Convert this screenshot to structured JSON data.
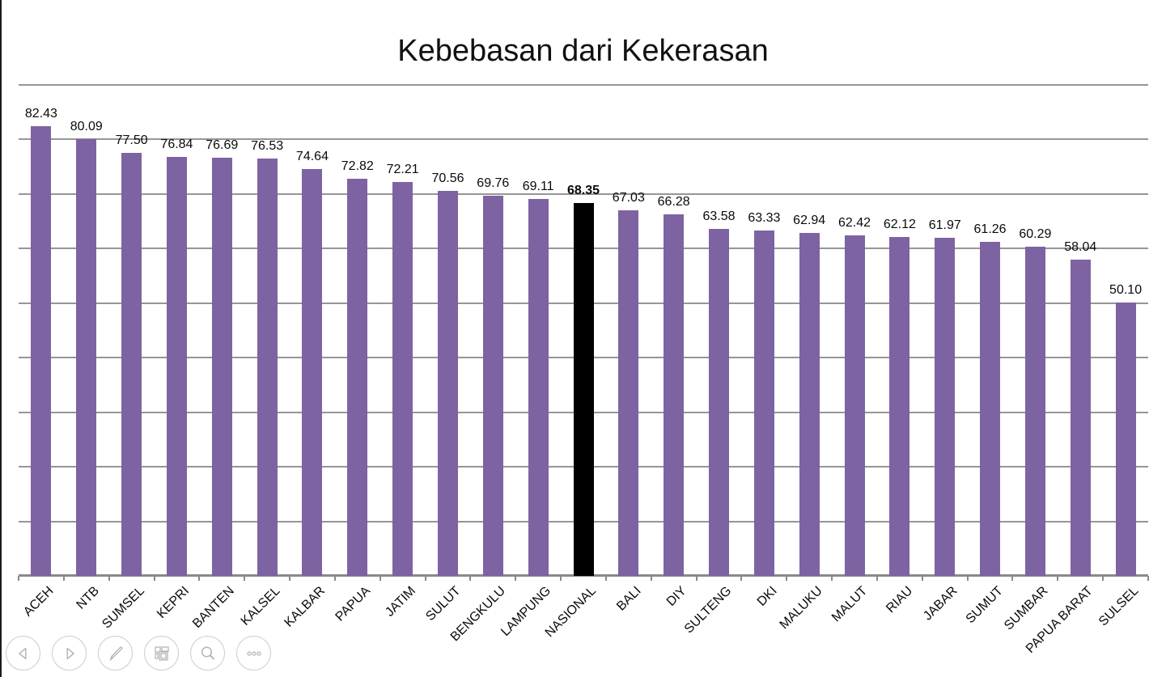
{
  "title": "Kebebasan dari Kekerasan",
  "chart_data": {
    "type": "bar",
    "title": "Kebebasan dari Kekerasan",
    "categories": [
      "ACEH",
      "NTB",
      "SUMSEL",
      "KEPRI",
      "BANTEN",
      "KALSEL",
      "KALBAR",
      "PAPUA",
      "JATIM",
      "SULUT",
      "BENGKULU",
      "LAMPUNG",
      "NASIONAL",
      "BALI",
      "DIY",
      "SULTENG",
      "DKI",
      "MALUKU",
      "MALUT",
      "RIAU",
      "JABAR",
      "SUMUT",
      "SUMBAR",
      "PAPUA BARAT",
      "SULSEL"
    ],
    "values": [
      82.43,
      80.09,
      77.5,
      76.84,
      76.69,
      76.53,
      74.64,
      72.82,
      72.21,
      70.56,
      69.76,
      69.11,
      68.35,
      67.03,
      66.28,
      63.58,
      63.33,
      62.94,
      62.42,
      62.12,
      61.97,
      61.26,
      60.29,
      58.04,
      50.1
    ],
    "data_label_decimals": 2,
    "highlight_category": "NASIONAL",
    "highlight_value": "68.35",
    "xlabel": "",
    "ylabel": "",
    "ylim": [
      0,
      90
    ],
    "grid_step": 10,
    "grid": "horizontal",
    "legend": "none",
    "colors": {
      "bar": "#7E63A2",
      "highlight_bar": "#000000",
      "gridline": "#969696",
      "axis": "#8A8A8A",
      "label": "#0a0a0a"
    }
  },
  "toolbar": {
    "buttons": [
      {
        "label": "previous-slide",
        "icon": "left-arrow-icon"
      },
      {
        "label": "next-slide",
        "icon": "right-arrow-icon"
      },
      {
        "label": "pen-tools",
        "icon": "pen-icon"
      },
      {
        "label": "see-all-slides",
        "icon": "slides-grid-icon"
      },
      {
        "label": "zoom-into-slide",
        "icon": "magnifier-icon"
      },
      {
        "label": "more-options",
        "icon": "ellipsis-icon"
      }
    ]
  }
}
